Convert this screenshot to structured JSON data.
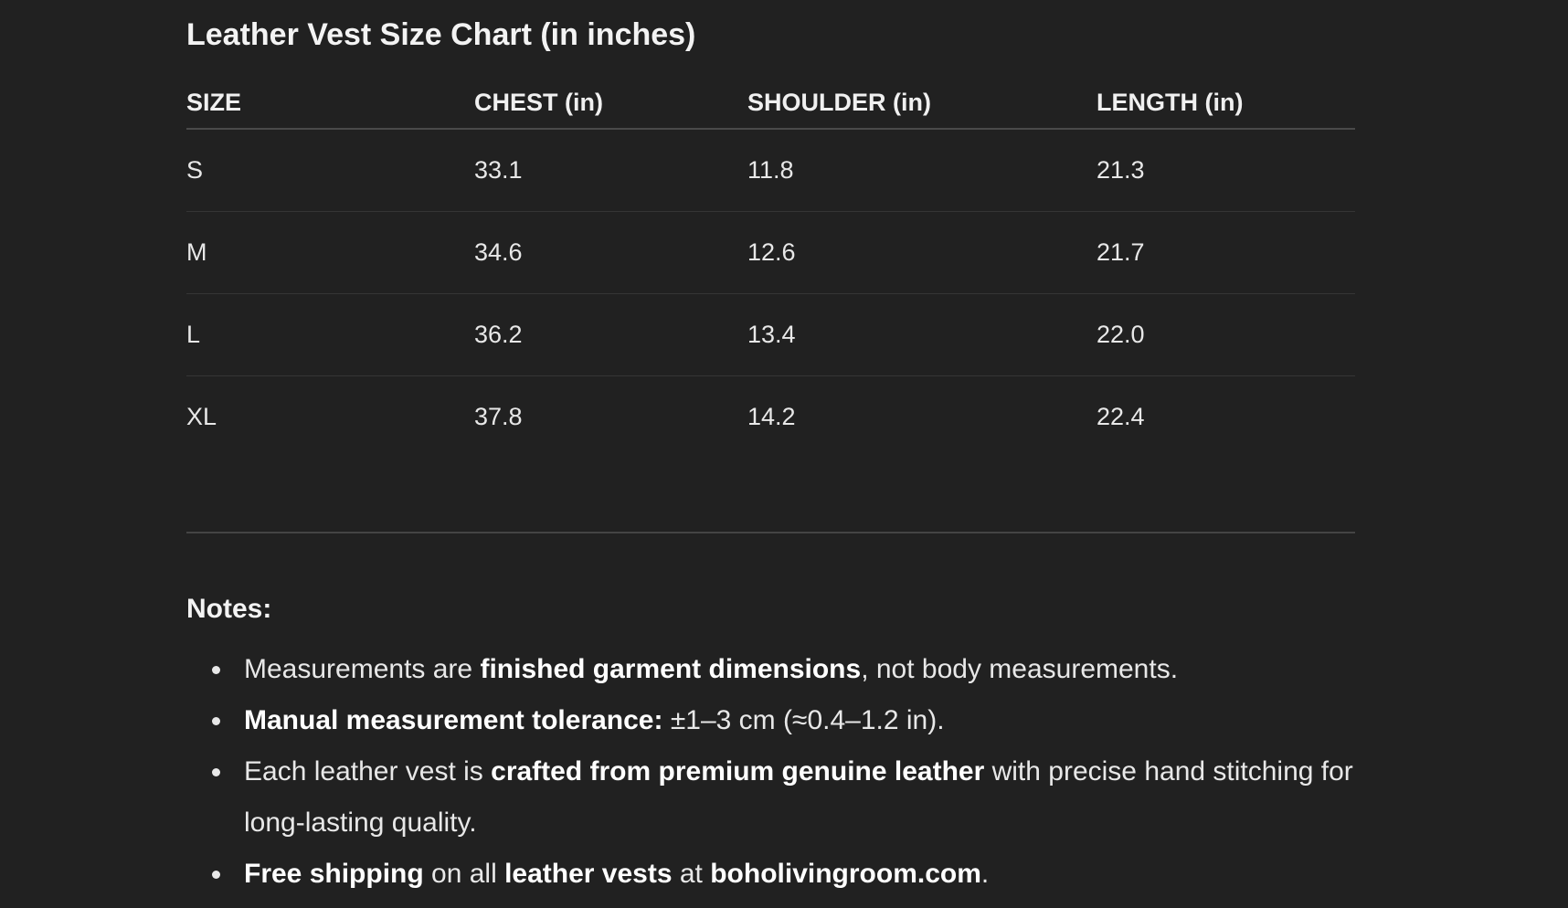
{
  "title": "Leather Vest Size Chart (in inches)",
  "table": {
    "headers": [
      "SIZE",
      "CHEST (in)",
      "SHOULDER (in)",
      "LENGTH (in)"
    ],
    "rows": [
      [
        "S",
        "33.1",
        "11.8",
        "21.3"
      ],
      [
        "M",
        "34.6",
        "12.6",
        "21.7"
      ],
      [
        "L",
        "36.2",
        "13.4",
        "22.0"
      ],
      [
        "XL",
        "37.8",
        "14.2",
        "22.4"
      ]
    ]
  },
  "notes": {
    "heading": "Notes:",
    "items": [
      [
        "Measurements are ",
        "finished garment dimensions",
        ", not body measurements."
      ],
      [
        "",
        "Manual measurement tolerance:",
        " ±1–3 cm (≈0.4–1.2 in)."
      ],
      [
        "Each leather vest is ",
        "crafted from premium genuine leather",
        " with precise hand stitching for long-lasting quality."
      ],
      [
        "",
        "Free shipping",
        " on all ",
        "leather vests",
        " at ",
        "boholivingroom.com",
        "."
      ]
    ]
  }
}
